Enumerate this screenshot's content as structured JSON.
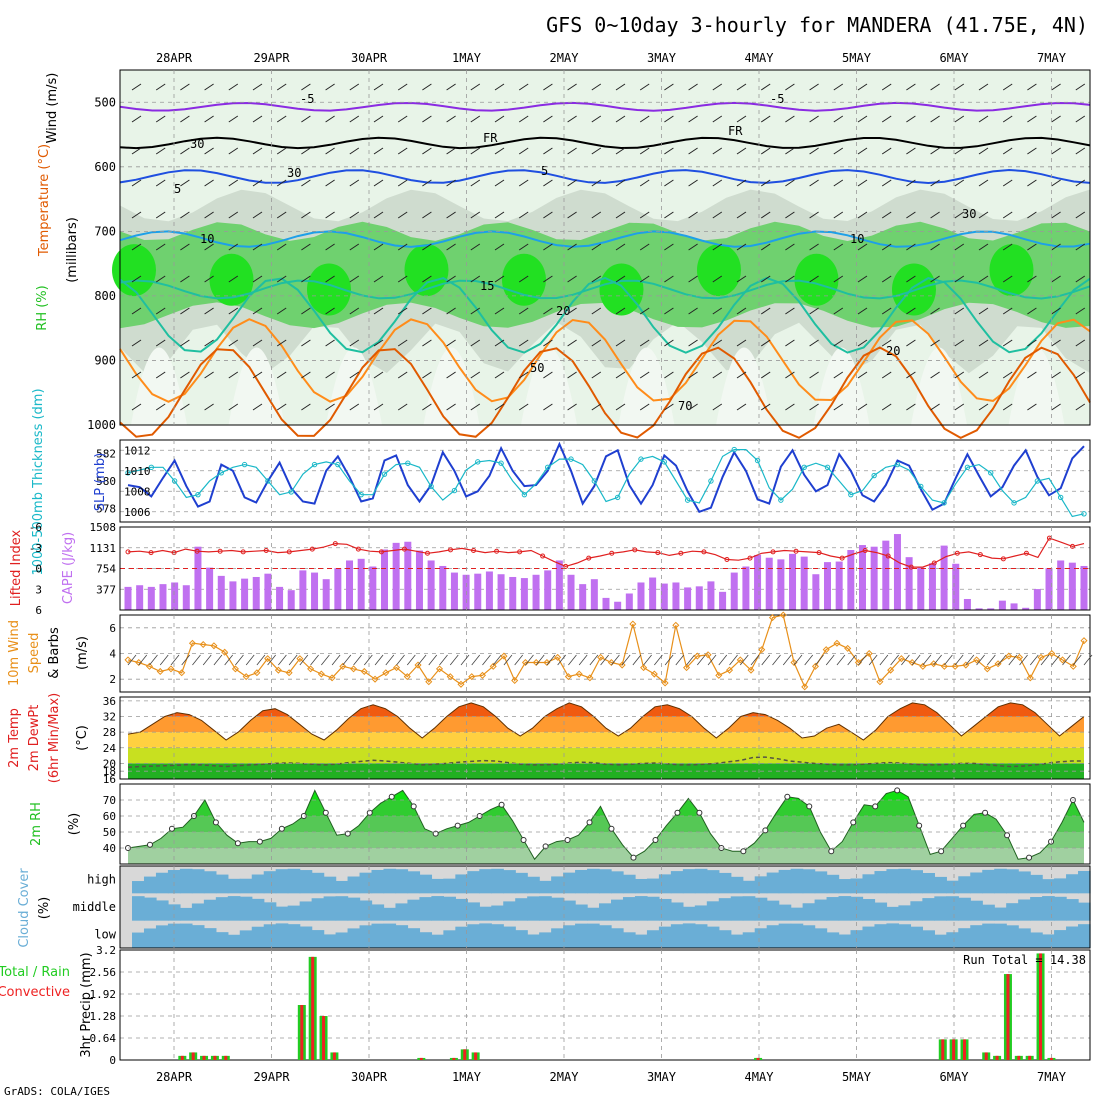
{
  "title": "GFS 0~10day 3-hourly for MANDERA (41.75E, 4N)",
  "footer": "GrADS: COLA/IGES",
  "colors": {
    "rh_light": "#e8f4e8",
    "rh_mid": "#cfdccf",
    "rh_green": "#6fd16f",
    "rh_bright": "#22e022",
    "temp_purple": "#8a2be2",
    "temp_black": "#000000",
    "temp_blue": "#1f4fe0",
    "temp_sky": "#1ea0e8",
    "temp_teal": "#1fbfa0",
    "temp_orange": "#ff8c1a",
    "temp_darkorange": "#e05a00",
    "temp_magenta": "#e0007a",
    "slp": "#1f3fd0",
    "thick": "#1ab8c8",
    "li": "#e02020",
    "cape": "#c070f0",
    "wind10": "#e8901a",
    "rh2m": "#22c022",
    "cloud": "#6aaed6",
    "cloud_bg": "#d8d8d8",
    "precip_total": "#22cc22",
    "precip_conv": "#ee2222"
  },
  "labels": {
    "panel1": [
      "Wind (m/s)",
      "Temperature (°C)",
      "RH (%)",
      "(millibars)"
    ],
    "panel2_left": "1000-500mb Thickness (dm)",
    "panel2_right": "SLP (mb)",
    "panel3_left": "Lifted Index",
    "panel3_right": "CAPE (J/kg)",
    "panel4": [
      "10m Wind",
      "Speed",
      "& Barbs",
      "(m/s)"
    ],
    "panel5": [
      "2m Temp",
      "2m DewPt",
      "(6hr Min/Max)",
      "(°C)"
    ],
    "panel6": [
      "2m RH",
      "(%)"
    ],
    "panel7": [
      "Cloud Cover",
      "(%)"
    ],
    "panel7_levels": [
      "high",
      "middle",
      "low"
    ],
    "panel8": [
      "Total / Rain",
      "Convective",
      "3hr Precip (mm)"
    ],
    "run_total": "Run Total = 14.38",
    "contour_labels": [
      "-5",
      "-5",
      "FR",
      "FR",
      "5",
      "5",
      "10",
      "10",
      "15",
      "20",
      "20",
      "30",
      "30",
      "30",
      "50",
      "70"
    ]
  },
  "chart_data": [
    {
      "type": "heatmap",
      "name": "upper-air",
      "x_dates": [
        "28APR",
        "29APR",
        "30APR",
        "1MAY",
        "2MAY",
        "3MAY",
        "4MAY",
        "5MAY",
        "6MAY",
        "7MAY"
      ],
      "y_ticks": [
        500,
        600,
        700,
        800,
        900,
        1000
      ],
      "ylim": [
        1000,
        450
      ],
      "temperature_contours": [
        -5,
        0,
        5,
        10,
        15,
        20,
        25,
        30
      ],
      "temperature_levels_mb": [
        507,
        563,
        615,
        712,
        790,
        830,
        900,
        950
      ]
    },
    {
      "type": "line",
      "name": "slp-thickness",
      "left_ticks": [
        578,
        580,
        582
      ],
      "right_ticks": [
        1006,
        1008,
        1010,
        1012
      ],
      "slp": [
        1008.6,
        1008.4,
        1007.5,
        1009.3,
        1011,
        1008.5,
        1006.5,
        1007,
        1010.6,
        1010,
        1007.4,
        1006.9,
        1009,
        1010.8,
        1008.3,
        1007,
        1006.8,
        1010,
        1011.4,
        1009.4,
        1007,
        1007.3,
        1011,
        1011.5,
        1008.6,
        1007,
        1008.6,
        1011.8,
        1010,
        1007.5,
        1008,
        1009.5,
        1012.2,
        1010,
        1008.5,
        1008.6,
        1010,
        1012.6,
        1010,
        1006.8,
        1008.5,
        1011.4,
        1012,
        1008.6,
        1006.8,
        1008.6,
        1011.5,
        1010.5,
        1008,
        1006,
        1006.4,
        1009.4,
        1011.8,
        1010,
        1007.2,
        1006.8,
        1010.4,
        1012,
        1009.6,
        1008,
        1008.6,
        1011.6,
        1010,
        1007.6,
        1007,
        1008.6,
        1011,
        1010.5,
        1008.2,
        1006.2,
        1006.8,
        1009.3,
        1011.6,
        1009.5,
        1007.5,
        1008.4,
        1010.5,
        1012,
        1009.4,
        1007.6,
        1008.3,
        1011.2,
        1012.4
      ],
      "thickness": [
        580.6,
        580.8,
        581,
        581,
        580,
        578.8,
        579,
        580,
        580.6,
        581,
        581.2,
        581,
        580,
        579,
        579.2,
        580.5,
        581.2,
        581.4,
        581.2,
        580,
        579,
        579,
        580.5,
        581.2,
        581.3,
        581,
        579.6,
        578.6,
        579.3,
        580.8,
        581.4,
        581.5,
        581.3,
        580,
        579,
        579.8,
        581,
        581.6,
        581.6,
        581.2,
        580,
        578.5,
        578.8,
        580.5,
        581.6,
        581.8,
        581.4,
        580,
        578.6,
        578.4,
        580,
        581.8,
        582.3,
        582.3,
        581.5,
        579.5,
        578.6,
        579.4,
        581,
        581.3,
        581,
        580,
        579,
        579.3,
        580.4,
        581,
        581.2,
        580.8,
        579.6,
        578.6,
        578.4,
        579.8,
        581,
        581.2,
        580.6,
        579.3,
        578.4,
        578.8,
        580,
        580.2,
        578.8,
        577.4,
        577.6
      ]
    },
    {
      "type": "bar",
      "name": "lifted-index-cape",
      "li_ticks": [
        -6,
        -3,
        0,
        3,
        6
      ],
      "cape_ticks": [
        377,
        754,
        1131,
        1508
      ],
      "li": [
        -2.4,
        -2.5,
        -2.3,
        -2.6,
        -2.3,
        -2.8,
        -2.5,
        -2.4,
        -2.5,
        -2.6,
        -2.4,
        -2.5,
        -2.6,
        -2.3,
        -2.4,
        -2.6,
        -2.8,
        -3.1,
        -3.6,
        -3.5,
        -2.8,
        -2.5,
        -2.4,
        -2.6,
        -2.8,
        -2.5,
        -2.2,
        -2.4,
        -2.7,
        -2.9,
        -2.6,
        -2.3,
        -2.5,
        -2.3,
        -2.4,
        -2.6,
        -1.8,
        -1,
        -0.3,
        -0.8,
        -1.5,
        -1.8,
        -2.2,
        -2.4,
        -2.7,
        -2.4,
        -2.3,
        -1.9,
        -2.2,
        -2.5,
        -2.4,
        -2,
        -1.3,
        -1.2,
        -1.5,
        -2.2,
        -2.4,
        -2.6,
        -2.5,
        -2.4,
        -2.3,
        -1.8,
        -1.5,
        -2.1,
        -2.6,
        -2.3,
        -1.8,
        -0.8,
        -0.2,
        -0.2,
        -0.8,
        -1.7,
        -2.2,
        -2.4,
        -2,
        -1.5,
        -1.4,
        -1.8,
        -2.2,
        -1.6,
        -4.4,
        -3.8,
        -3.2,
        -3.6
      ],
      "cape": [
        420,
        450,
        420,
        470,
        500,
        450,
        1150,
        770,
        620,
        520,
        570,
        600,
        660,
        420,
        360,
        720,
        680,
        560,
        760,
        900,
        930,
        790,
        1100,
        1220,
        1240,
        1080,
        900,
        800,
        680,
        640,
        660,
        700,
        650,
        600,
        580,
        640,
        720,
        900,
        640,
        470,
        560,
        220,
        150,
        300,
        500,
        590,
        480,
        500,
        410,
        430,
        520,
        330,
        680,
        790,
        1000,
        950,
        920,
        1020,
        970,
        650,
        870,
        880,
        1090,
        1180,
        1150,
        1260,
        1380,
        960,
        770,
        850,
        1170,
        840,
        200,
        30,
        30,
        170,
        120,
        40,
        380,
        760,
        900,
        860,
        800
      ]
    },
    {
      "type": "line",
      "name": "10m-wind",
      "y_ticks": [
        2,
        4,
        6
      ],
      "ylim": [
        1,
        7
      ],
      "speed": [
        3.5,
        3.3,
        3,
        2.6,
        2.8,
        2.5,
        4.8,
        4.7,
        4.6,
        4.1,
        2.8,
        2.2,
        2.5,
        3.6,
        2.7,
        2.5,
        3.6,
        2.8,
        2.4,
        2.1,
        3,
        2.8,
        2.6,
        2,
        2.5,
        2.9,
        2.2,
        3.1,
        1.8,
        2.8,
        2.2,
        1.6,
        2.2,
        2.3,
        3,
        3.8,
        1.9,
        3.3,
        3.3,
        3.3,
        3.7,
        2.2,
        2.4,
        2.1,
        3.7,
        3.3,
        3.1,
        6.3,
        2.9,
        2.4,
        1.7,
        6.2,
        2.9,
        3.8,
        3.9,
        2.3,
        2.7,
        3.5,
        2.7,
        4.3,
        6.8,
        7,
        3.3,
        1.4,
        3,
        4.3,
        4.8,
        4.4,
        3.3,
        4,
        1.8,
        2.7,
        3.6,
        3.3,
        3,
        3.2,
        3,
        3,
        3.1,
        3.5,
        2.8,
        3.2,
        3.8,
        3.7,
        2.1,
        3.7,
        4,
        3.5,
        3,
        5
      ]
    },
    {
      "type": "area",
      "name": "2m-temp-dewpoint",
      "y_ticks": [
        16,
        18,
        20,
        24,
        28,
        32,
        36
      ],
      "ylim": [
        16,
        37
      ],
      "temp": [
        27.5,
        28,
        30,
        32,
        33,
        32.5,
        31,
        28.5,
        26,
        28,
        31,
        33.5,
        34,
        32.5,
        30,
        27.5,
        26,
        28.5,
        31.5,
        34,
        35,
        34,
        32,
        29,
        26.5,
        29,
        32,
        34.5,
        35.5,
        34.5,
        32,
        29,
        27,
        29,
        32,
        34,
        35.5,
        34.5,
        32,
        29,
        27,
        29,
        32,
        34.5,
        35,
        34,
        32,
        29,
        26.5,
        29,
        32,
        33,
        32.5,
        31,
        29,
        26.5,
        27,
        29,
        30,
        28,
        26,
        28.5,
        32,
        34,
        35.5,
        35,
        33,
        30,
        27,
        29.5,
        32,
        34.5,
        35.5,
        35,
        33,
        30,
        27,
        29.5,
        32
      ],
      "dewpoint": [
        19,
        19.2,
        19.3,
        19.4,
        19.5,
        19.7,
        19.6,
        19.4,
        19.2,
        19.4,
        19.6,
        19.8,
        20,
        20.1,
        20,
        19.8,
        19.6,
        19.8,
        20.2,
        20.5,
        20.8,
        20.6,
        20.3,
        20,
        19.6,
        19.8,
        20,
        20.3,
        20.5,
        20.7,
        20.6,
        20.2,
        19.8,
        19.6,
        19.6,
        19.8,
        20.1,
        20.3,
        20.2,
        19.8,
        19.6,
        19.8,
        20,
        20.1,
        19.9,
        19.6,
        19.6,
        19.8,
        20,
        20.4,
        20.8,
        21.5,
        21.6,
        21.2,
        20.6,
        20.3,
        20,
        19.8,
        19.6,
        19.6,
        19.8,
        20,
        20.2,
        20.1,
        19.8,
        19.6,
        19.6,
        19.8,
        20,
        20,
        19.7,
        19.4,
        19.2,
        19.3,
        19.6,
        20,
        20.4,
        20.6,
        20.6
      ]
    },
    {
      "type": "area",
      "name": "2m-rh",
      "y_ticks": [
        40,
        50,
        60,
        70
      ],
      "ylim": [
        30,
        80
      ],
      "rh": [
        40,
        41,
        42,
        46,
        52,
        53,
        60,
        70,
        56,
        48,
        43,
        44,
        44,
        46,
        52,
        55,
        60,
        76,
        62,
        48,
        49,
        54,
        62,
        68,
        72,
        76,
        66,
        52,
        49,
        52,
        54,
        56,
        60,
        64,
        67,
        57,
        45,
        33,
        41,
        44,
        45,
        48,
        56,
        66,
        52,
        42,
        34,
        38,
        45,
        54,
        62,
        71,
        62,
        49,
        40,
        38,
        38,
        43,
        51,
        62,
        72,
        71,
        66,
        50,
        38,
        44,
        56,
        67,
        66,
        74,
        76,
        72,
        54,
        36,
        38,
        46,
        54,
        61,
        62,
        58,
        48,
        33,
        34,
        37,
        44,
        56,
        70,
        56
      ]
    },
    {
      "type": "bar",
      "name": "cloud-cover",
      "categories": [
        "high",
        "middle",
        "low"
      ]
    },
    {
      "type": "bar",
      "name": "3hr-precip",
      "y_ticks": [
        0,
        0.64,
        1.28,
        1.92,
        2.56,
        3.2
      ],
      "ylim": [
        0,
        3.2
      ],
      "total": [
        0,
        0,
        0,
        0,
        0,
        0.12,
        0.22,
        0.12,
        0.12,
        0.12,
        0,
        0,
        0,
        0,
        0,
        0,
        1.6,
        3,
        1.28,
        0.22,
        0,
        0,
        0,
        0,
        0,
        0,
        0,
        0.06,
        0,
        0,
        0.06,
        0.31,
        0.22,
        0,
        0,
        0,
        0,
        0,
        0,
        0,
        0,
        0,
        0,
        0,
        0,
        0,
        0,
        0,
        0,
        0,
        0,
        0,
        0,
        0,
        0,
        0,
        0,
        0,
        0.06,
        0,
        0,
        0,
        0,
        0,
        0,
        0,
        0,
        0,
        0,
        0,
        0,
        0,
        0,
        0,
        0,
        0.6,
        0.6,
        0.6,
        0,
        0.22,
        0.12,
        2.5,
        0.12,
        0.12,
        3.1,
        0.06,
        0,
        0,
        0
      ],
      "convective": [
        0,
        0,
        0,
        0,
        0,
        0.12,
        0.22,
        0.12,
        0.12,
        0.12,
        0,
        0,
        0,
        0,
        0,
        0,
        1.6,
        3,
        1.28,
        0.22,
        0,
        0,
        0,
        0,
        0,
        0,
        0,
        0.06,
        0,
        0,
        0.06,
        0.31,
        0.22,
        0,
        0,
        0,
        0,
        0,
        0,
        0,
        0,
        0,
        0,
        0,
        0,
        0,
        0,
        0,
        0,
        0,
        0,
        0,
        0,
        0,
        0,
        0,
        0,
        0,
        0.06,
        0,
        0,
        0,
        0,
        0,
        0,
        0,
        0,
        0,
        0,
        0,
        0,
        0,
        0,
        0,
        0,
        0.6,
        0.6,
        0.6,
        0,
        0.22,
        0.12,
        2.5,
        0.12,
        0.12,
        3.1,
        0.06,
        0,
        0,
        0
      ]
    }
  ]
}
